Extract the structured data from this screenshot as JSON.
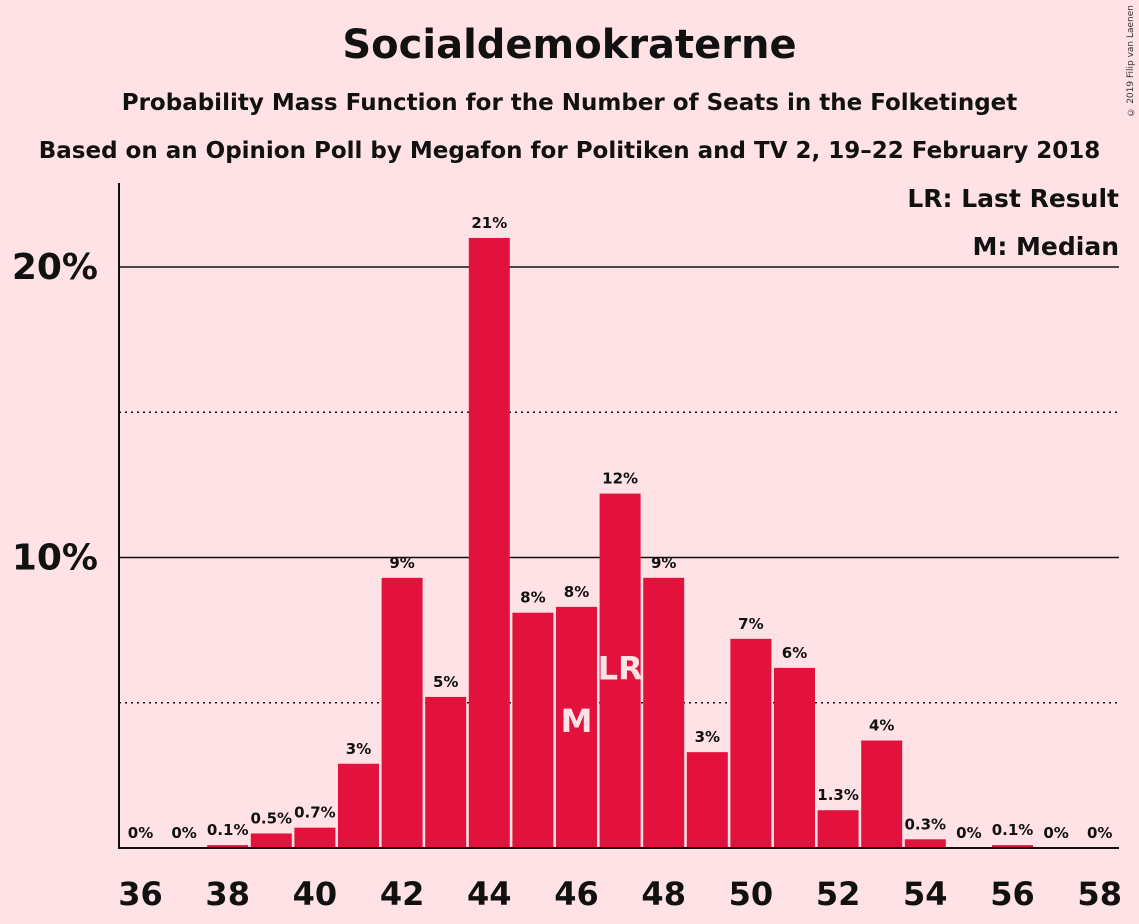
{
  "header": {
    "title": "Socialdemokraterne",
    "subtitle_1": "Probability Mass Function for the Number of Seats in the Folketinget",
    "subtitle_2": "Based on an Opinion Poll by Megafon for Politiken and TV 2, 19–22 February 2018",
    "copyright": "© 2019 Filip van Laenen"
  },
  "legend": {
    "last_result": "LR: Last Result",
    "median": "M: Median"
  },
  "colors": {
    "background": "#FEE2E6",
    "bar": "#E3123D",
    "axis": "#111111"
  },
  "chart_data": {
    "type": "bar",
    "title": "Socialdemokraterne",
    "x_tick_labels": [
      "36",
      "38",
      "40",
      "42",
      "44",
      "46",
      "48",
      "50",
      "52",
      "54",
      "56",
      "58"
    ],
    "y_tick_labels": [
      "10%",
      "20%"
    ],
    "ylim": [
      0,
      22
    ],
    "gridlines": {
      "solid": [
        10,
        20
      ],
      "dotted": [
        5,
        15
      ]
    },
    "categories": [
      36,
      37,
      38,
      39,
      40,
      41,
      42,
      43,
      44,
      45,
      46,
      47,
      48,
      49,
      50,
      51,
      52,
      53,
      54,
      55,
      56,
      57,
      58
    ],
    "values": [
      0,
      0,
      0.1,
      0.5,
      0.7,
      2.9,
      9.3,
      5.2,
      21.0,
      8.1,
      8.3,
      12.2,
      9.3,
      3.3,
      7.2,
      6.2,
      1.3,
      3.7,
      0.3,
      0,
      0.1,
      0,
      0
    ],
    "labels": [
      "0%",
      "0%",
      "0.1%",
      "0.5%",
      "0.7%",
      "3%",
      "9%",
      "5%",
      "21%",
      "8%",
      "8%",
      "12%",
      "9%",
      "3%",
      "7%",
      "6%",
      "1.3%",
      "4%",
      "0.3%",
      "0%",
      "0.1%",
      "0%",
      "0%"
    ],
    "markers": [
      {
        "seat": 46,
        "text": "M"
      },
      {
        "seat": 47,
        "text": "LR"
      }
    ]
  }
}
